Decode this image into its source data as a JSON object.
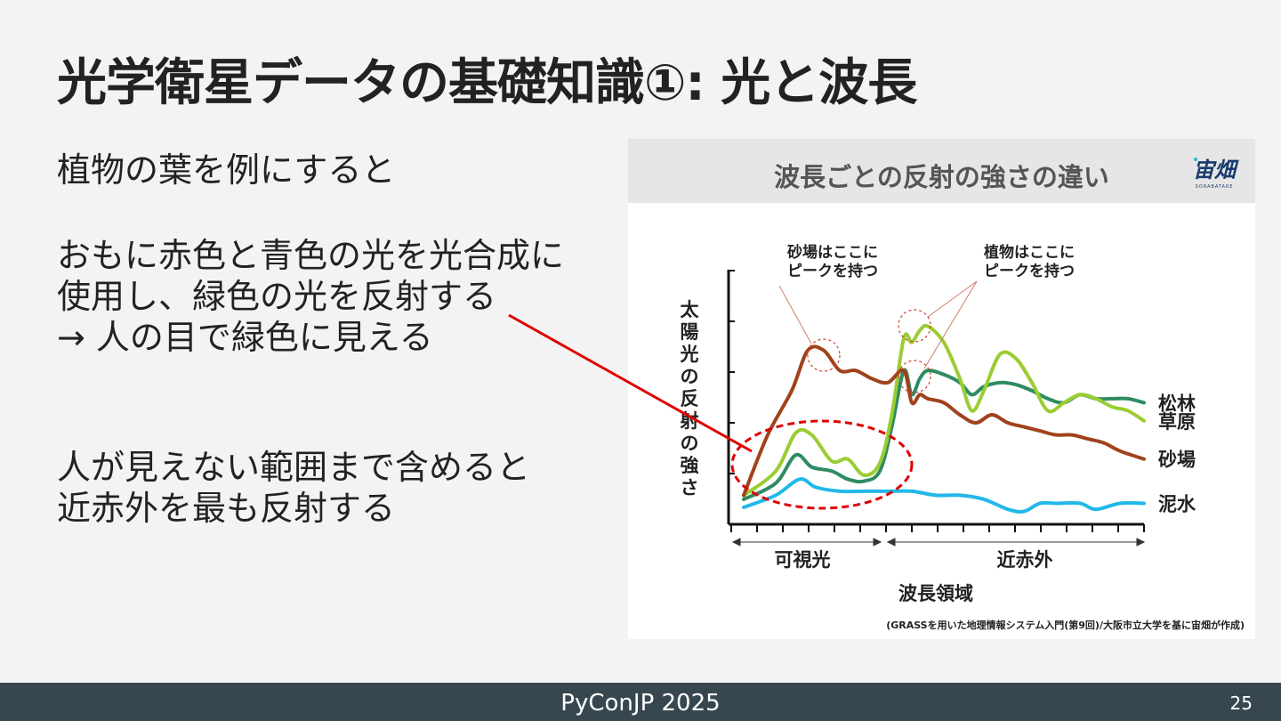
{
  "slide": {
    "title": "光学衛星データの基礎知識①: 光と波長",
    "text1": "植物の葉を例にすると",
    "text2": [
      "おもに赤色と青色の光を光合成に",
      "使用し、緑色の光を反射する",
      "→ 人の目で緑色に見える"
    ],
    "text3": [
      "人が見えない範囲まで含めると",
      "近赤外を最も反射する"
    ]
  },
  "figure": {
    "title": "波長ごとの反射の強さの違い",
    "logo_text": "宙畑",
    "logo_sub": "SORABATAKE",
    "caption": "(GRASSを用いた地理情報システム入門(第9回)/大阪市立大学を基に宙畑が作成)"
  },
  "chart_data": {
    "type": "line",
    "title": "波長ごとの反射の強さの違い",
    "xlabel": "波長領域",
    "ylabel": "太陽光の反射の強さ",
    "x_regions": [
      "可視光",
      "近赤外"
    ],
    "xlim": [
      0,
      100
    ],
    "ylim": [
      0,
      100
    ],
    "annotations": [
      "砂場はここに\nピークを持つ",
      "植物はここに\nピークを持つ"
    ],
    "series": [
      {
        "name": "松林",
        "color": "#2e8b62",
        "x": [
          0,
          8,
          13,
          17,
          22,
          26,
          30,
          34,
          37,
          40,
          42,
          44,
          46,
          50,
          54,
          57,
          60,
          64,
          68,
          72,
          76,
          80,
          84,
          88,
          92,
          96,
          100
        ],
        "y": [
          8,
          16,
          30,
          24,
          22,
          18,
          17,
          22,
          44,
          72,
          60,
          68,
          72,
          70,
          66,
          60,
          64,
          66,
          65,
          62,
          58,
          56,
          60,
          58,
          58,
          58,
          56
        ]
      },
      {
        "name": "草原",
        "color": "#9acd32",
        "x": [
          0,
          8,
          13,
          17,
          22,
          26,
          30,
          34,
          37,
          40,
          42,
          44,
          46,
          50,
          54,
          57,
          60,
          64,
          68,
          72,
          76,
          80,
          84,
          88,
          92,
          96,
          100
        ],
        "y": [
          10,
          22,
          41,
          40,
          27,
          28,
          20,
          26,
          50,
          88,
          86,
          92,
          94,
          86,
          68,
          52,
          62,
          80,
          78,
          66,
          52,
          56,
          60,
          58,
          54,
          52,
          47
        ]
      },
      {
        "name": "砂場",
        "color": "#a0421c",
        "x": [
          0,
          6,
          12,
          16,
          20,
          24,
          28,
          32,
          36,
          40,
          42,
          44,
          46,
          50,
          54,
          58,
          62,
          66,
          70,
          74,
          78,
          82,
          86,
          90,
          94,
          100
        ],
        "y": [
          10,
          40,
          62,
          82,
          82,
          72,
          72,
          68,
          66,
          72,
          56,
          60,
          58,
          56,
          50,
          46,
          50,
          46,
          44,
          42,
          40,
          40,
          38,
          36,
          32,
          28
        ]
      },
      {
        "name": "泥水",
        "color": "#22b8e8",
        "x": [
          0,
          8,
          14,
          18,
          24,
          30,
          36,
          42,
          48,
          54,
          60,
          66,
          70,
          74,
          78,
          84,
          88,
          94,
          100
        ],
        "y": [
          4,
          10,
          18,
          14,
          12,
          12,
          12,
          12,
          10,
          10,
          8,
          3,
          2,
          6,
          6,
          6,
          3,
          6,
          6
        ]
      }
    ]
  }
}
